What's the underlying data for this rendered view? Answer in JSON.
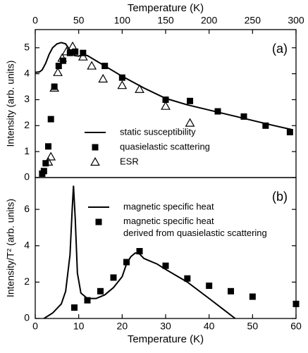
{
  "chart_data": [
    {
      "type": "scatter",
      "annotation": "(a)",
      "xlabel": "Temperature (K)",
      "xaxis_position": "top",
      "ylabel": "Intensity (arb. units)",
      "xlim": [
        0,
        300
      ],
      "xticks": [
        0,
        50,
        100,
        150,
        200,
        250,
        300
      ],
      "ylim": [
        0,
        5.7
      ],
      "yticks": [
        0,
        1,
        2,
        3,
        4,
        5
      ],
      "legend": "lower center",
      "series": [
        {
          "name": "static susceptibility",
          "style": "line",
          "color": "#000000",
          "x": [
            0,
            5,
            8,
            12,
            16,
            20,
            25,
            30,
            35,
            40,
            45,
            50,
            55,
            60,
            70,
            80,
            100,
            125,
            150,
            175,
            200,
            225,
            250,
            275,
            295
          ],
          "values": [
            4.05,
            4.07,
            4.15,
            4.4,
            4.75,
            5.0,
            5.15,
            5.2,
            5.15,
            4.9,
            4.7,
            4.68,
            4.72,
            4.7,
            4.5,
            4.3,
            3.9,
            3.45,
            3.05,
            2.8,
            2.6,
            2.4,
            2.2,
            2.0,
            1.85
          ]
        },
        {
          "name": "quasielastic scattering",
          "style": "square",
          "color": "#000000",
          "x": [
            8,
            10,
            12,
            15,
            18,
            22,
            27,
            32,
            40,
            46,
            55,
            80,
            100,
            150,
            178,
            210,
            240,
            265,
            293
          ],
          "values": [
            0.15,
            0.25,
            0.55,
            1.2,
            2.25,
            3.5,
            4.3,
            4.5,
            4.8,
            4.85,
            4.8,
            4.3,
            3.85,
            3.0,
            2.95,
            2.55,
            2.35,
            2.0,
            1.75
          ]
        },
        {
          "name": "ESR",
          "style": "triangle",
          "color": "#000000",
          "x": [
            15,
            18,
            22,
            26,
            31,
            36,
            43,
            55,
            65,
            78,
            100,
            120,
            150,
            178
          ],
          "values": [
            0.6,
            0.8,
            3.45,
            4.05,
            4.6,
            4.85,
            5.05,
            4.65,
            4.3,
            3.8,
            3.55,
            3.4,
            2.75,
            2.1
          ]
        }
      ]
    },
    {
      "type": "scatter",
      "annotation": "(b)",
      "xlabel": "Temperature (K)",
      "xaxis_position": "bottom",
      "ylabel": "Intensity/T² (arb. units)",
      "xlim": [
        0,
        60
      ],
      "xticks": [
        0,
        10,
        20,
        30,
        40,
        50,
        60
      ],
      "ylim": [
        0,
        7.75
      ],
      "yticks": [
        0,
        2,
        4,
        6
      ],
      "legend": "upper center",
      "series": [
        {
          "name": "magnetic specific heat",
          "style": "line",
          "color": "#000000",
          "x": [
            2,
            4,
            6,
            7,
            8,
            8.5,
            8.8,
            9.2,
            9.7,
            10.5,
            12,
            14,
            16,
            18,
            20,
            21,
            22,
            23,
            24,
            25,
            26,
            28,
            30,
            35,
            40,
            43,
            46
          ],
          "values": [
            0,
            0.3,
            0.8,
            1.5,
            3.5,
            6.0,
            7.3,
            5.5,
            2.5,
            1.4,
            1.1,
            1.1,
            1.3,
            1.7,
            2.3,
            3.0,
            3.4,
            3.6,
            3.55,
            3.3,
            3.2,
            3.0,
            2.7,
            2.0,
            1.1,
            0.55,
            0
          ]
        },
        {
          "name": "magnetic specific heat derived from quasielastic scattering",
          "style": "square",
          "color": "#000000",
          "x": [
            9,
            12,
            15,
            18,
            21,
            24,
            30,
            35,
            40,
            45,
            50,
            60
          ],
          "values": [
            0.6,
            1.0,
            1.5,
            2.25,
            3.1,
            3.7,
            2.9,
            2.2,
            1.8,
            1.5,
            1.2,
            0.8
          ]
        }
      ]
    }
  ]
}
